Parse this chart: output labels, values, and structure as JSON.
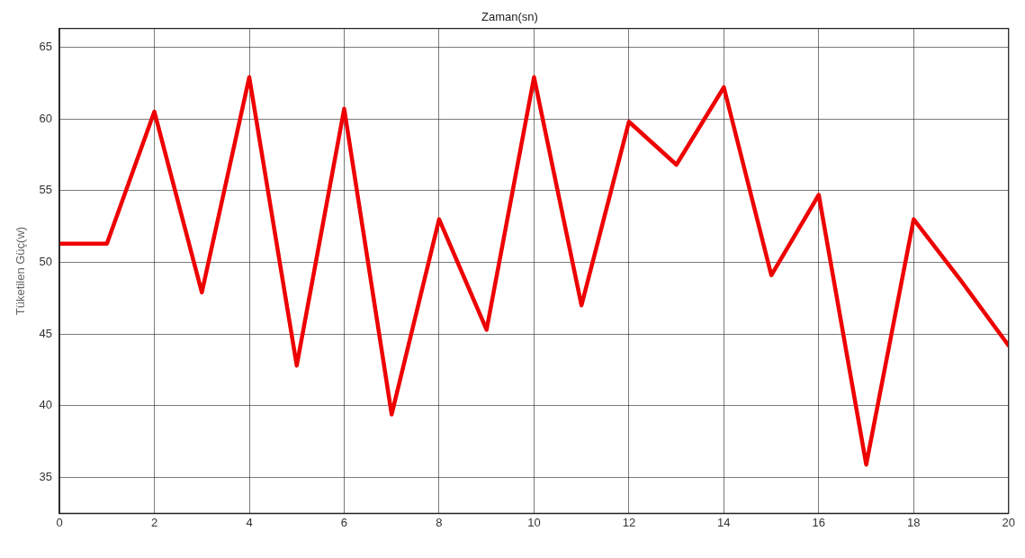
{
  "chart_data": {
    "type": "line",
    "title": "Zaman(sn)",
    "ylabel": "Tüketilen Güç(w)",
    "x": [
      0,
      1,
      2,
      3,
      4,
      5,
      6,
      7,
      8,
      9,
      10,
      11,
      12,
      13,
      14,
      15,
      16,
      17,
      18,
      19,
      20
    ],
    "series": [
      {
        "color": "#ee0000",
        "values": [
          51.3,
          51.3,
          60.5,
          47.9,
          62.9,
          42.8,
          60.7,
          39.4,
          53,
          45.3,
          62.9,
          47,
          59.8,
          56.8,
          62.2,
          49.1,
          54.7,
          35.9,
          53,
          48.7,
          44.2
        ]
      }
    ],
    "xlim": [
      0,
      20
    ],
    "xticks": [
      0,
      2,
      4,
      6,
      8,
      10,
      12,
      14,
      16,
      18,
      20
    ],
    "ylim": [
      32.5,
      66.3
    ],
    "yticks": [
      35,
      40,
      45,
      50,
      55,
      60,
      65
    ],
    "grid": true,
    "legend": false,
    "marker": "none",
    "line_style": "solid"
  }
}
